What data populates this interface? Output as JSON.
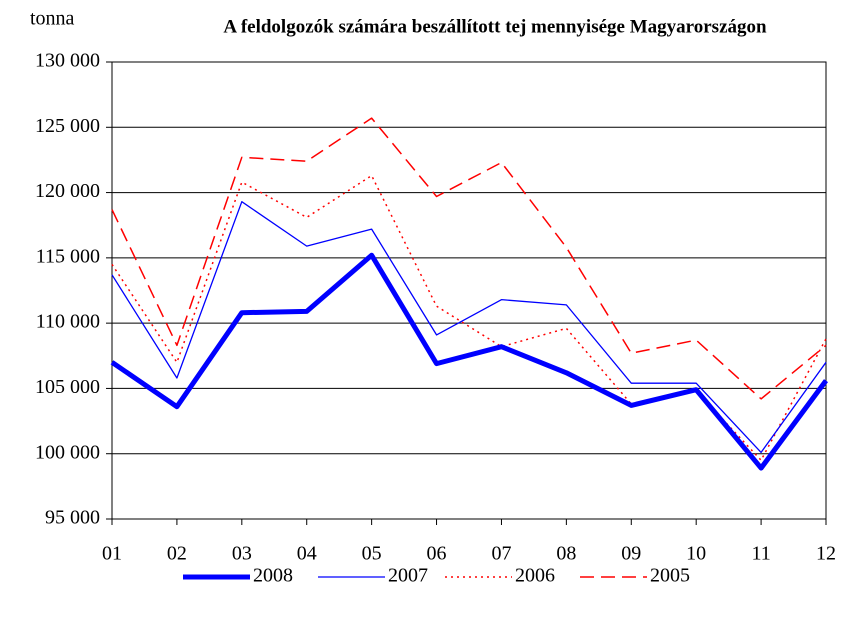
{
  "chart_data": {
    "type": "line",
    "title": "A feldolgozók számára beszállított tej mennyisége Magyarországon",
    "y_label": "tonna",
    "categories": [
      "01",
      "02",
      "03",
      "04",
      "05",
      "06",
      "07",
      "08",
      "09",
      "10",
      "11",
      "12"
    ],
    "series": [
      {
        "name": "2008",
        "color": "#0000ff",
        "line_width": 5,
        "line_style": "solid",
        "values": [
          107000,
          103600,
          110800,
          110900,
          115200,
          106900,
          108200,
          106200,
          103700,
          104900,
          98900,
          105600
        ]
      },
      {
        "name": "2007",
        "color": "#0000ff",
        "line_width": 1.3,
        "line_style": "solid",
        "values": [
          113700,
          105800,
          119300,
          115900,
          117200,
          109100,
          111800,
          111400,
          105400,
          105400,
          100100,
          107000
        ]
      },
      {
        "name": "2006",
        "color": "#ff0000",
        "line_width": 1.5,
        "line_style": "dotted",
        "values": [
          114500,
          107000,
          120800,
          118100,
          121300,
          111300,
          108200,
          109600,
          103800,
          104800,
          99500,
          108800
        ]
      },
      {
        "name": "2005",
        "color": "#ff0000",
        "line_width": 1.5,
        "line_style": "dashed",
        "values": [
          118700,
          108300,
          122700,
          122400,
          125700,
          119700,
          122300,
          115800,
          107700,
          108700,
          104200,
          108300
        ]
      }
    ],
    "ylim": [
      95000,
      130000
    ],
    "yticks": [
      {
        "value": 95000,
        "label": "95 000"
      },
      {
        "value": 100000,
        "label": "100 000"
      },
      {
        "value": 105000,
        "label": "105 000"
      },
      {
        "value": 110000,
        "label": "110 000"
      },
      {
        "value": 115000,
        "label": "115 000"
      },
      {
        "value": 120000,
        "label": "120 000"
      },
      {
        "value": 125000,
        "label": "125 000"
      },
      {
        "value": 130000,
        "label": "130 000"
      }
    ],
    "grid": true,
    "legend": "bottom"
  }
}
